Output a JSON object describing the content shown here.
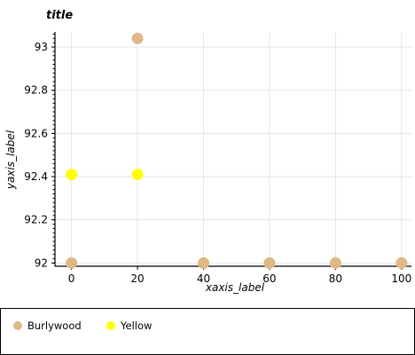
{
  "chart_data": {
    "type": "scatter",
    "title": "title",
    "xlabel": "xaxis_label",
    "ylabel": "yaxis_label",
    "xlim": [
      -5,
      103
    ],
    "ylim": [
      91.985,
      93.07
    ],
    "x_ticks": [
      0,
      20,
      40,
      60,
      80,
      100
    ],
    "y_ticks": [
      92,
      92.2,
      92.4,
      92.6,
      92.8,
      93
    ],
    "x_tick_labels": [
      "0",
      "20",
      "40",
      "60",
      "80",
      "100"
    ],
    "y_tick_labels": [
      "92",
      "92.2",
      "92.4",
      "92.6",
      "92.8",
      "93"
    ],
    "grid": true,
    "legend_position": "bottom",
    "series": [
      {
        "name": "Burlywood",
        "color": "#deb887",
        "x": [
          0,
          20,
          40,
          60,
          80,
          100
        ],
        "y": [
          92,
          93.04,
          92,
          92,
          92,
          92
        ]
      },
      {
        "name": "Yellow",
        "color": "#ffff00",
        "x": [
          0,
          20,
          40,
          60,
          80,
          100
        ],
        "y": [
          92.41,
          92.41,
          92,
          92,
          92,
          92
        ]
      }
    ]
  }
}
